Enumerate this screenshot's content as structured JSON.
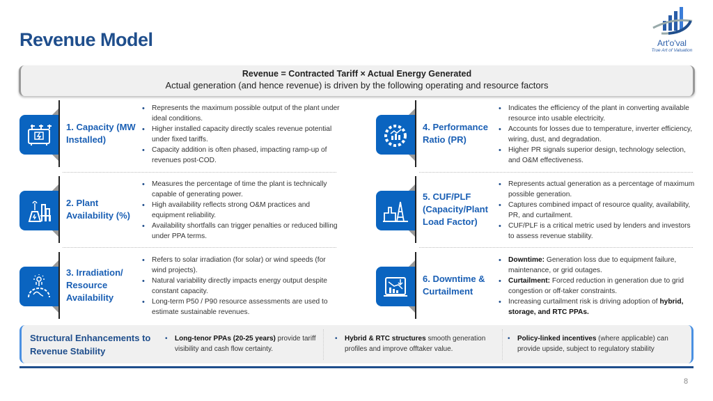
{
  "header": {
    "title": "Revenue Model",
    "logo": {
      "name": "Art'o'val",
      "tagline": "True Art of Valuation"
    }
  },
  "banner": {
    "formula": "Revenue = Contracted Tariff × Actual Energy Generated",
    "subtitle": "Actual generation (and hence revenue) is driven by the following operating and resource factors"
  },
  "factors": [
    {
      "title": "1. Capacity (MW Installed)",
      "icon": "solar-inverter-icon",
      "bullets": [
        "Represents the maximum possible output of the plant under ideal conditions.",
        "Higher installed capacity directly scales revenue potential under fixed tariffs.",
        "Capacity addition is often phased, impacting ramp-up of revenues post-COD."
      ]
    },
    {
      "title": "2. Plant Availability (%)",
      "icon": "power-plant-icon",
      "bullets": [
        "Measures the percentage of time the plant is technically capable of generating power.",
        "High availability reflects strong O&M practices and equipment reliability.",
        "Availability shortfalls can trigger penalties or reduced billing under PPA terms."
      ]
    },
    {
      "title": "3. Irradiation/ Resource Availability",
      "icon": "globe-sun-icon",
      "bullets": [
        "Refers to solar irradiation (for solar) or wind speeds (for wind projects).",
        "Natural variability directly impacts energy output despite constant capacity.",
        "Long-term P50 / P90 resource assessments are used to estimate sustainable revenues."
      ]
    },
    {
      "title": "4. Performance Ratio (PR)",
      "icon": "gauge-chart-icon",
      "bullets": [
        "Indicates the efficiency of the plant in converting available resource into usable electricity.",
        "Accounts for losses due to temperature, inverter efficiency, wiring, dust, and degradation.",
        "Higher PR signals superior design, technology selection, and O&M effectiveness."
      ]
    },
    {
      "title": "5. CUF/PLF (Capacity/Plant Load Factor)",
      "icon": "factory-tower-icon",
      "bullets": [
        "Represents actual generation as a percentage of maximum possible generation.",
        "Captures combined impact of resource quality, availability, PR, and curtailment.",
        "CUF/PLF is a critical metric used by lenders and investors to assess revenue stability."
      ]
    },
    {
      "title": "6. Downtime & Curtailment",
      "icon": "declining-chart-icon",
      "bullets": [
        {
          "bold": "Downtime:",
          "text": " Generation loss due to equipment failure, maintenance, or grid outages."
        },
        {
          "bold": "Curtailment:",
          "text": " Forced reduction in generation due to grid congestion or off-taker constraints."
        },
        {
          "text": "Increasing curtailment risk is driving adoption of ",
          "bold_end": "hybrid, storage, and RTC PPAs."
        }
      ]
    }
  ],
  "enhancements": {
    "title": "Structural Enhancements to Revenue Stability",
    "items": [
      {
        "bold": "Long-tenor PPAs (20-25 years)",
        "text": " provide tariff visibility and cash flow certainty."
      },
      {
        "bold": "Hybrid & RTC structures",
        "text": " smooth generation profiles and improve offtaker value."
      },
      {
        "bold": "Policy-linked incentives",
        "text": " (where applicable) can provide upside, subject to regulatory stability"
      }
    ]
  },
  "page_number": "8",
  "colors": {
    "accent": "#0a64c0",
    "title": "#1f4e8c",
    "banner_bg": "#f0f0f0"
  }
}
